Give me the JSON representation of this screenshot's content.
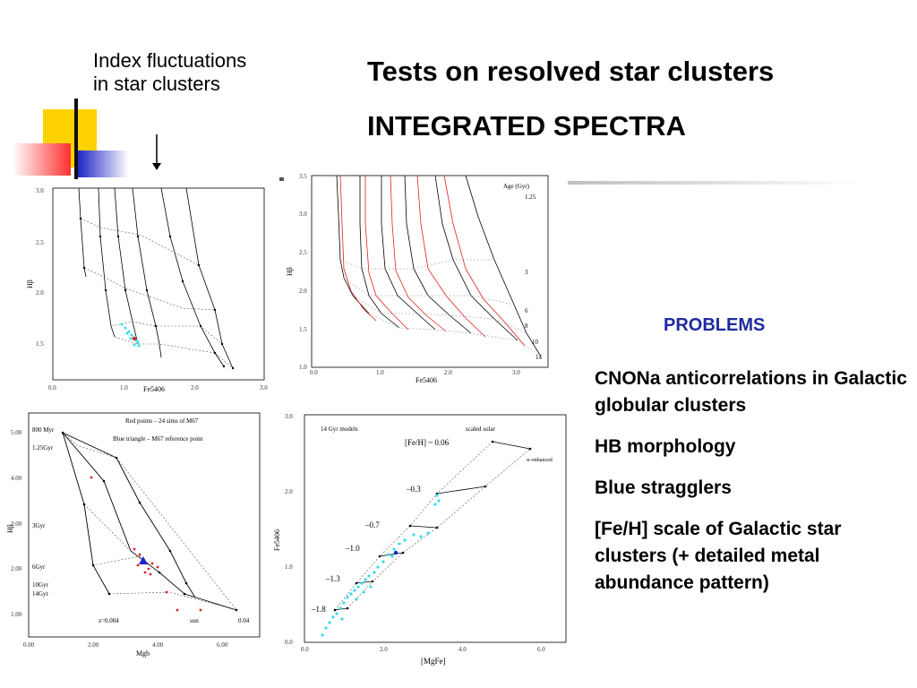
{
  "slide": {
    "note_line1": "Index fluctuations",
    "note_line2": "in star clusters",
    "title": "Tests on resolved star clusters",
    "subtitle": "INTEGRATED SPECTRA",
    "problems_heading": "PROBLEMS",
    "problems": [
      "CNONa anticorrelations in Galactic globular clusters",
      "HB morphology",
      "Blue stragglers",
      "[Fe/H] scale of Galactic star clusters (+ detailed metal abundance pattern)"
    ],
    "colors": {
      "accent_yellow": "#ffd200",
      "accent_blue": "#1c22c6",
      "accent_red": "#ff3030",
      "heading_blue": "#1f2aa0"
    }
  },
  "chart_data": [
    {
      "type": "line",
      "xlabel": "Fe5406",
      "ylabel": "Hβ",
      "x_ticks": [
        "0.0",
        "1.0",
        "2.0",
        "3.0"
      ],
      "y_ticks": [
        "1.5",
        "2.0",
        "2.5",
        "3.0"
      ]
    },
    {
      "type": "line",
      "xlabel": "Fe5406",
      "ylabel": "Hβ",
      "x_ticks": [
        "0.0",
        "1.0",
        "2.0",
        "3.0"
      ],
      "y_ticks": [
        "1.0",
        "1.5",
        "2.0",
        "2.5",
        "3.0",
        "3.5"
      ],
      "legend_title": "Age (Gyr)",
      "age_labels": [
        "1.25",
        "3",
        "6",
        "8",
        "10",
        "14"
      ]
    },
    {
      "type": "line",
      "xlabel": "Mgb",
      "ylabel": "Hβ",
      "x_ticks": [
        "0.00",
        "2.00",
        "4.00",
        "6.00"
      ],
      "y_ticks": [
        "1.00",
        "2.00",
        "3.00",
        "4.00",
        "5.00"
      ],
      "annotation_1": "Red points – 24 sims of M67",
      "annotation_2": "Blue triangle – M67 reference point",
      "age_labels": [
        "800 Myr",
        "1.25Gyr",
        "3Gyr",
        "6Gyr",
        "10Gyr",
        "14Gyr"
      ],
      "z_left": "z=0.004",
      "z_right_label": "sun",
      "z_right": "0.04"
    },
    {
      "type": "scatter",
      "xlabel": "[MgFe]",
      "ylabel": "Fe5406",
      "x_ticks": [
        "0.0",
        "2.0",
        "4.0",
        "6.0"
      ],
      "y_ticks": [
        "0.0",
        "1.0",
        "2.0",
        "3.0"
      ],
      "model_label": "14 Gyr models",
      "solar_label": "scaled solar",
      "alpha_label": "α–enhanced",
      "feh_labels": [
        "[Fe/H] ~ 0.06",
        "–0.3",
        "–0.7",
        "–1.0",
        "–1.3",
        "–1.8"
      ]
    }
  ]
}
